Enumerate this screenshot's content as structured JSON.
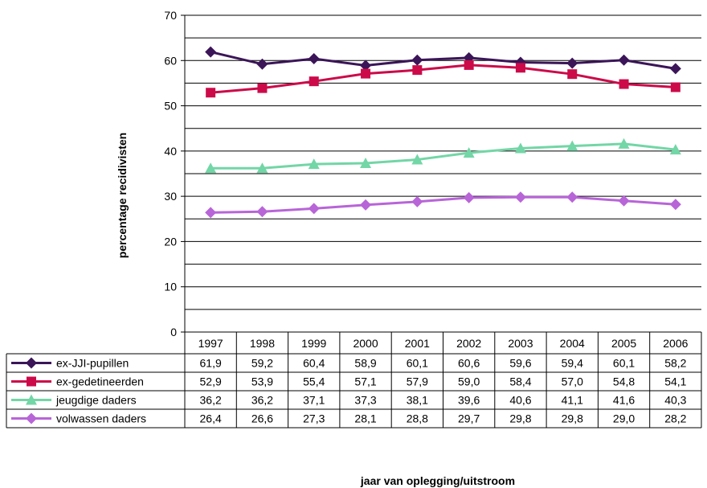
{
  "chart_data": {
    "type": "line",
    "ylabel": "percentage recidivisten",
    "xlabel": "jaar van oplegging/uitstroom",
    "ylim": [
      0,
      70
    ],
    "yticks": [
      0,
      10,
      20,
      30,
      40,
      50,
      60,
      70
    ],
    "grid": true,
    "legend": "data-table-left",
    "categories": [
      "1997",
      "1998",
      "1999",
      "2000",
      "2001",
      "2002",
      "2003",
      "2004",
      "2005",
      "2006"
    ],
    "series": [
      {
        "name": "ex-JJI-pupillen",
        "marker": "diamond",
        "color": "#3b1558",
        "values": [
          61.9,
          59.2,
          60.4,
          58.9,
          60.1,
          60.6,
          59.6,
          59.4,
          60.1,
          58.2
        ],
        "labels": [
          "61,9",
          "59,2",
          "60,4",
          "58,9",
          "60,1",
          "60,6",
          "59,6",
          "59,4",
          "60,1",
          "58,2"
        ]
      },
      {
        "name": "ex-gedetineerden",
        "marker": "square",
        "color": "#cc0a4a",
        "values": [
          52.9,
          53.9,
          55.4,
          57.1,
          57.9,
          59.0,
          58.4,
          57.0,
          54.8,
          54.1
        ],
        "labels": [
          "52,9",
          "53,9",
          "55,4",
          "57,1",
          "57,9",
          "59,0",
          "58,4",
          "57,0",
          "54,8",
          "54,1"
        ]
      },
      {
        "name": "jeugdige daders",
        "marker": "triangle",
        "color": "#72d6a6",
        "values": [
          36.2,
          36.2,
          37.1,
          37.3,
          38.1,
          39.6,
          40.6,
          41.1,
          41.6,
          40.3
        ],
        "labels": [
          "36,2",
          "36,2",
          "37,1",
          "37,3",
          "38,1",
          "39,6",
          "40,6",
          "41,1",
          "41,6",
          "40,3"
        ]
      },
      {
        "name": "volwassen daders",
        "marker": "diamond",
        "color": "#b865d8",
        "values": [
          26.4,
          26.6,
          27.3,
          28.1,
          28.8,
          29.7,
          29.8,
          29.8,
          29.0,
          28.2
        ],
        "labels": [
          "26,4",
          "26,6",
          "27,3",
          "28,1",
          "28,8",
          "29,7",
          "29,8",
          "29,8",
          "29,0",
          "28,2"
        ]
      }
    ]
  }
}
